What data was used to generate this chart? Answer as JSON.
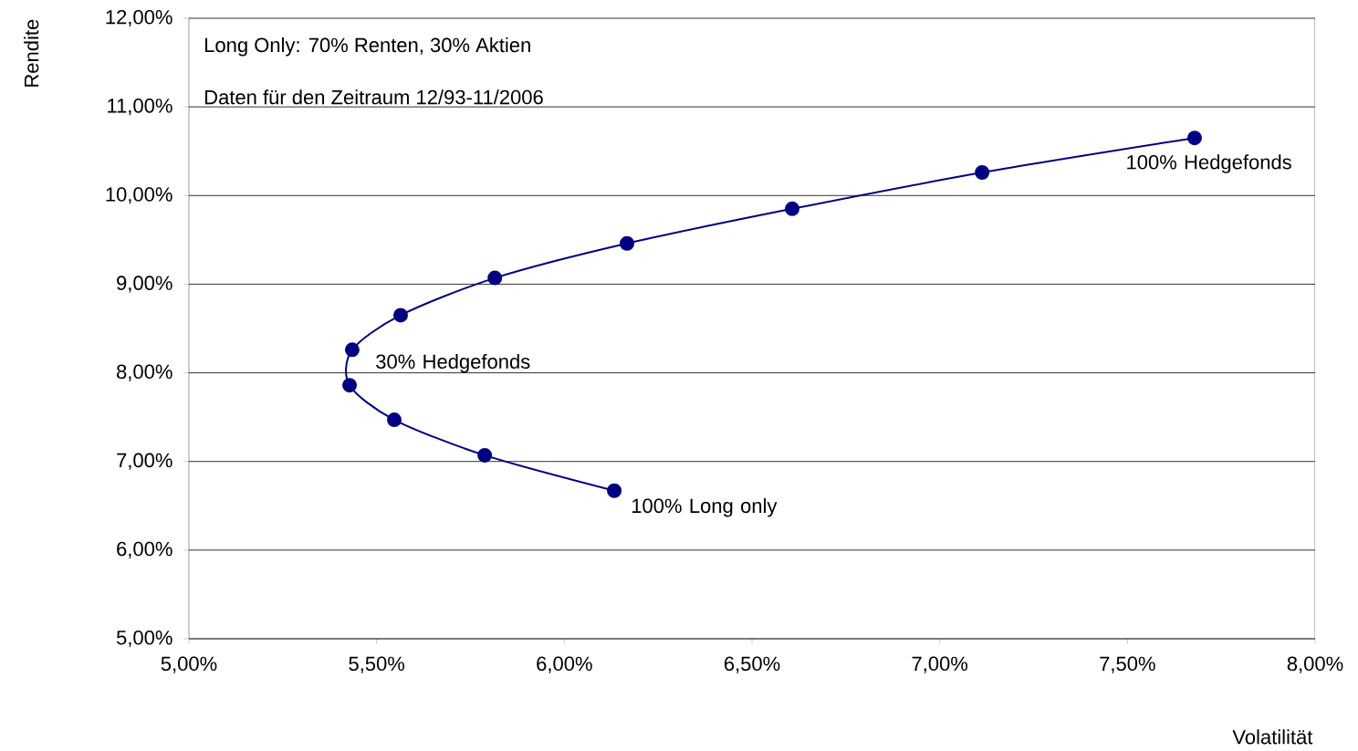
{
  "chart_data": {
    "type": "line",
    "xlabel": "Volatilität",
    "ylabel": "Rendite",
    "x": [
      6.133,
      5.788,
      5.547,
      5.428,
      5.435,
      5.564,
      5.815,
      6.167,
      6.607,
      7.113,
      7.679
    ],
    "series": [
      {
        "color": "#000080",
        "values": [
          6.67,
          7.07,
          7.47,
          7.86,
          8.26,
          8.65,
          9.07,
          9.46,
          9.85,
          10.26,
          10.65
        ]
      }
    ],
    "xlim": [
      5,
      8
    ],
    "ylim": [
      5,
      12
    ],
    "xticks": [
      {
        "value": 5,
        "label": "5,00%"
      },
      {
        "value": 5.5,
        "label": "5,50%"
      },
      {
        "value": 6,
        "label": "6,00%"
      },
      {
        "value": 6.5,
        "label": "6,50%"
      },
      {
        "value": 7,
        "label": "7,00%"
      },
      {
        "value": 7.5,
        "label": "7,50%"
      },
      {
        "value": 8,
        "label": "8,00%"
      }
    ],
    "yticks": [
      {
        "value": 5,
        "label": "5,00%"
      },
      {
        "value": 6,
        "label": "6,00%"
      },
      {
        "value": 7,
        "label": "7,00%"
      },
      {
        "value": 8,
        "label": "8,00%"
      },
      {
        "value": 9,
        "label": "9,00%"
      },
      {
        "value": 10,
        "label": "10,00%"
      },
      {
        "value": 11,
        "label": "11,00%"
      },
      {
        "value": 12,
        "label": "12,00%"
      }
    ],
    "grid": "y",
    "marker": "circle",
    "line_style": "solid",
    "annotations": [
      "Long Only: 70% Renten, 30% Aktien",
      "Daten für den Zeitraum 12/93-11/2006",
      {
        "text": "100% Long only",
        "x": 6.133,
        "y": 6.67
      },
      {
        "text": "30% Hedgefonds",
        "x": 5.428,
        "y": 7.86
      },
      {
        "text": "100% Hedgefonds",
        "x": 7.679,
        "y": 10.65
      }
    ]
  }
}
